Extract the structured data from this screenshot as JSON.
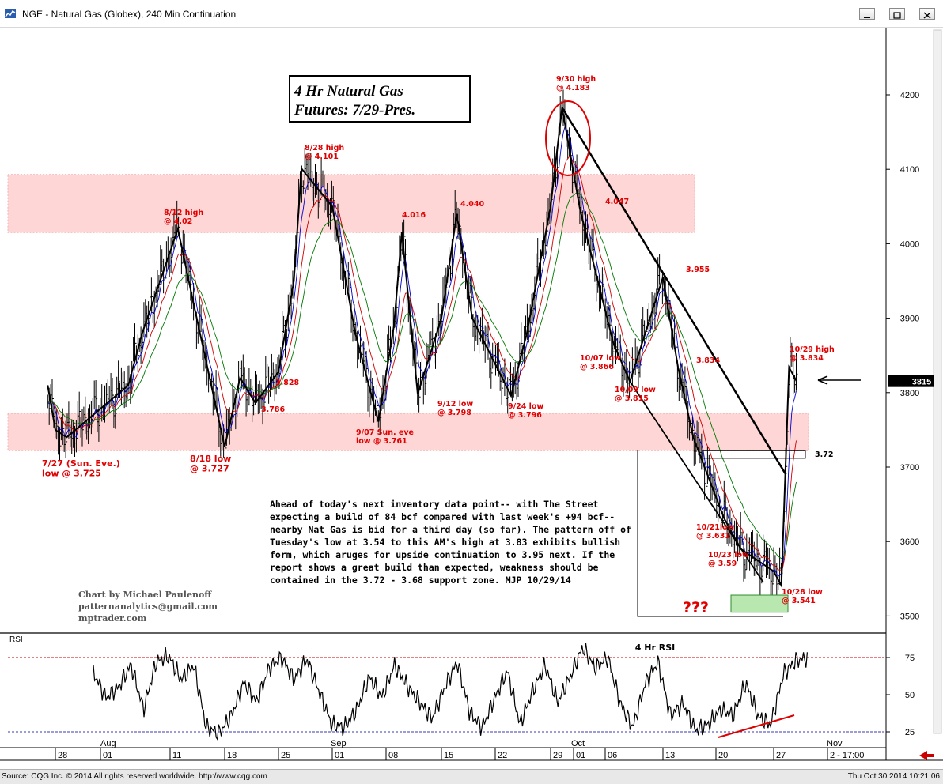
{
  "window": {
    "title": "NGE - Natural Gas (Globex), 240 Min Continuation",
    "minimize_label": "–",
    "maximize_label": "□",
    "close_label": "✕"
  },
  "status_bar": {
    "left": "Source: CQG Inc. © 2014 All rights reserved worldwide. http://www.cqg.com",
    "right": "Thu Oct 30 2014 10:21:06"
  },
  "colors": {
    "annotation": "#e00000",
    "trendline": "#000000",
    "zone": "#ffd6d6",
    "last_price_bg": "#000000",
    "rsi": "#000000",
    "ma_fast": "#0000cc",
    "ma_mid": "#cc0000",
    "ma_slow": "#007700"
  },
  "chart_data": {
    "type": "line",
    "description_title": [
      "4 Hr Natural Gas",
      "Futures:  7/29-Pres."
    ],
    "price_axis": {
      "ticks": [
        3500,
        3600,
        3700,
        3800,
        3900,
        4000,
        4100,
        4200
      ],
      "ylim": [
        3470,
        4270
      ]
    },
    "last_price": "3815",
    "x_ticks": [
      "28",
      "01",
      "11",
      "18",
      "25",
      "01",
      "08",
      "15",
      "22",
      "29",
      "01",
      "06",
      "13",
      "20",
      "27",
      "2 - 17:00"
    ],
    "months": [
      "Aug",
      "Sep",
      "Oct",
      "Nov"
    ],
    "price_path": [
      {
        "x": "7/27",
        "y": 3810
      },
      {
        "x": "7/28",
        "y": 3750
      },
      {
        "x": "7/29",
        "y": 3740
      },
      {
        "x": "8/05",
        "y": 3810
      },
      {
        "x": "8/07",
        "y": 3880
      },
      {
        "x": "8/12",
        "y": 4020
      },
      {
        "x": "8/14",
        "y": 3920
      },
      {
        "x": "8/18",
        "y": 3727
      },
      {
        "x": "8/20",
        "y": 3820
      },
      {
        "x": "8/22",
        "y": 3786
      },
      {
        "x": "8/25",
        "y": 3828
      },
      {
        "x": "8/27",
        "y": 3950
      },
      {
        "x": "8/28",
        "y": 4101
      },
      {
        "x": "9/01",
        "y": 4050
      },
      {
        "x": "9/04",
        "y": 3880
      },
      {
        "x": "9/07",
        "y": 3761
      },
      {
        "x": "9/09",
        "y": 3890
      },
      {
        "x": "9/10",
        "y": 4016
      },
      {
        "x": "9/12",
        "y": 3798
      },
      {
        "x": "9/15",
        "y": 3900
      },
      {
        "x": "9/17",
        "y": 4040
      },
      {
        "x": "9/19",
        "y": 3900
      },
      {
        "x": "9/24",
        "y": 3796
      },
      {
        "x": "9/26",
        "y": 3880
      },
      {
        "x": "9/29",
        "y": 4050
      },
      {
        "x": "9/30",
        "y": 4183
      },
      {
        "x": "10/02",
        "y": 4047
      },
      {
        "x": "10/07",
        "y": 3866
      },
      {
        "x": "10/09",
        "y": 3815
      },
      {
        "x": "10/13",
        "y": 3955
      },
      {
        "x": "10/15",
        "y": 3834
      },
      {
        "x": "10/17",
        "y": 3740
      },
      {
        "x": "10/21",
        "y": 3631
      },
      {
        "x": "10/23",
        "y": 3590
      },
      {
        "x": "10/27",
        "y": 3560
      },
      {
        "x": "10/28",
        "y": 3541
      },
      {
        "x": "10/29",
        "y": 3834
      },
      {
        "x": "10/30",
        "y": 3815
      }
    ],
    "resistance_zone": [
      4015,
      4093
    ],
    "support_zone": [
      3722,
      3772
    ],
    "annotations": [
      {
        "text": [
          "7/27 (Sun. Eve.)",
          "low @ 3.725"
        ]
      },
      {
        "text": [
          "8/12 high",
          "@ 4.02"
        ]
      },
      {
        "text": [
          "8/18 low",
          "@ 3.727"
        ]
      },
      {
        "text": [
          "3.786"
        ]
      },
      {
        "text": [
          "3.828"
        ]
      },
      {
        "text": [
          "8/28 high",
          "@ 4.101"
        ]
      },
      {
        "text": [
          "9/07 Sun. eve",
          "low @ 3.761"
        ]
      },
      {
        "text": [
          "4.016"
        ]
      },
      {
        "text": [
          "9/12 low",
          "@ 3.798"
        ]
      },
      {
        "text": [
          "4.040"
        ]
      },
      {
        "text": [
          "9/24 low",
          "@ 3.796"
        ]
      },
      {
        "text": [
          "9/30 high",
          "@ 4.183"
        ]
      },
      {
        "text": [
          "4.047"
        ]
      },
      {
        "text": [
          "10/07 low",
          "@ 3.866"
        ]
      },
      {
        "text": [
          "10/09 low",
          "@ 3.815"
        ]
      },
      {
        "text": [
          "3.955"
        ]
      },
      {
        "text": [
          "3.834"
        ]
      },
      {
        "text": [
          "10/29 high",
          "@ 3.834"
        ]
      },
      {
        "text": [
          "10/21low",
          "@ 3.631"
        ]
      },
      {
        "text": [
          "10/23 low",
          "@ 3.59"
        ]
      },
      {
        "text": [
          "10/28 low",
          "@ 3.541"
        ]
      },
      {
        "text": [
          "3.72"
        ]
      },
      {
        "text": [
          "???"
        ]
      }
    ],
    "commentary": [
      "Ahead of today's next inventory data point-- with The Street",
      "expecting a build of 84 bcf compared with last week's +94 bcf--",
      "nearby Nat Gas is bid for a third day (so far). The pattern off of",
      "Tuesday's low at 3.54 to this AM's high at 3.83 exhibits bullish",
      "form, which aruges for upside continuation to 3.95 next. If the",
      "report shows a great build than expected, weakness should be",
      "contained in the 3.72 - 3.68 support zone.  MJP 10/29/14"
    ],
    "credit": [
      "Chart by Michael Paulenoff",
      "patternanalytics@gmail.com",
      "mptrader.com"
    ],
    "rsi": {
      "label": "RSI",
      "title": "4 Hr RSI",
      "levels": [
        25,
        50,
        75
      ],
      "values": [
        65,
        48,
        55,
        70,
        40,
        72,
        76,
        60,
        70,
        28,
        24,
        36,
        58,
        45,
        68,
        75,
        60,
        74,
        52,
        30,
        28,
        40,
        62,
        48,
        70,
        56,
        45,
        34,
        55,
        72,
        38,
        28,
        48,
        66,
        30,
        52,
        70,
        45,
        62,
        82,
        68,
        75,
        44,
        28,
        58,
        72,
        36,
        44,
        26,
        30,
        40,
        36,
        58,
        35,
        30,
        64,
        73,
        75
      ]
    }
  }
}
